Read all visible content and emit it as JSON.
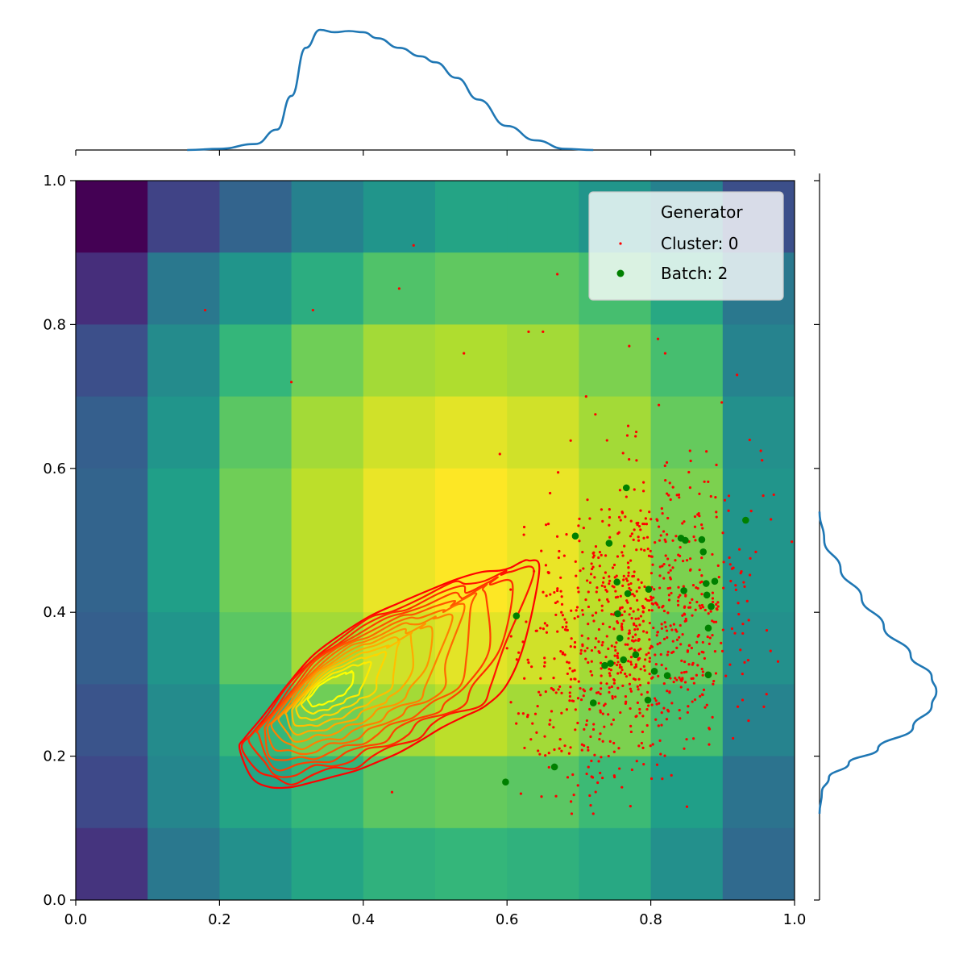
{
  "chart_data": {
    "type": "scatter",
    "title": "",
    "xlabel": "",
    "ylabel": "",
    "xlim": [
      0.0,
      1.0
    ],
    "ylim": [
      0.0,
      1.0
    ],
    "x_ticks": [
      "0.0",
      "0.2",
      "0.4",
      "0.6",
      "0.8",
      "1.0"
    ],
    "y_ticks": [
      "0.0",
      "0.2",
      "0.4",
      "0.6",
      "0.8",
      "1.0"
    ],
    "grid": false,
    "legend": {
      "placement": "top-right",
      "title": "Generator",
      "entries": [
        {
          "label": "Cluster: 0",
          "color": "#ff0000",
          "marker": "small-dot"
        },
        {
          "label": "Batch: 2",
          "color": "#008000",
          "marker": "dot"
        }
      ]
    },
    "background_heatmap": {
      "colormap": "viridis",
      "x_bins": [
        0.0,
        0.1,
        0.2,
        0.3,
        0.4,
        0.5,
        0.6,
        0.7,
        0.8,
        0.9,
        1.0
      ],
      "y_bins": [
        0.0,
        0.1,
        0.2,
        0.3,
        0.4,
        0.5,
        0.6,
        0.7,
        0.8,
        0.9,
        1.0
      ],
      "intensity_rows_top_to_bottom": [
        [
          0.0,
          0.2,
          0.32,
          0.44,
          0.52,
          0.58,
          0.58,
          0.52,
          0.44,
          0.24
        ],
        [
          0.13,
          0.4,
          0.52,
          0.62,
          0.72,
          0.75,
          0.75,
          0.7,
          0.6,
          0.4
        ],
        [
          0.24,
          0.48,
          0.66,
          0.78,
          0.86,
          0.88,
          0.86,
          0.8,
          0.7,
          0.45
        ],
        [
          0.3,
          0.52,
          0.74,
          0.86,
          0.93,
          0.96,
          0.93,
          0.86,
          0.76,
          0.5
        ],
        [
          0.32,
          0.56,
          0.78,
          0.9,
          0.97,
          1.0,
          0.97,
          0.9,
          0.8,
          0.52
        ],
        [
          0.32,
          0.56,
          0.78,
          0.9,
          0.97,
          1.0,
          0.97,
          0.9,
          0.8,
          0.52
        ],
        [
          0.3,
          0.52,
          0.74,
          0.86,
          0.93,
          0.96,
          0.93,
          0.86,
          0.76,
          0.5
        ],
        [
          0.26,
          0.48,
          0.66,
          0.78,
          0.86,
          0.9,
          0.86,
          0.8,
          0.7,
          0.45
        ],
        [
          0.22,
          0.46,
          0.58,
          0.66,
          0.74,
          0.76,
          0.74,
          0.68,
          0.56,
          0.38
        ],
        [
          0.15,
          0.4,
          0.5,
          0.58,
          0.64,
          0.66,
          0.64,
          0.6,
          0.5,
          0.34
        ]
      ]
    },
    "series": [
      {
        "name": "Cluster: 0",
        "color": "#ff0000",
        "distribution": {
          "count": 900,
          "x_mean": 0.78,
          "x_sd": 0.085,
          "x_min": 0.6,
          "x_max": 1.0,
          "y_mean": 0.38,
          "y_sd": 0.11,
          "y_min": 0.1,
          "y_max": 0.72,
          "correlation": 0.3
        },
        "x": [
          0.18,
          0.33,
          0.45,
          0.47,
          0.67,
          0.3,
          0.54,
          0.63,
          0.65,
          0.59,
          0.6,
          0.44,
          0.63,
          0.66,
          0.69,
          0.72,
          0.67,
          0.71,
          0.81,
          0.82,
          0.77,
          0.92
        ],
        "y": [
          0.82,
          0.82,
          0.85,
          0.91,
          0.87,
          0.72,
          0.76,
          0.79,
          0.79,
          0.62,
          0.35,
          0.15,
          0.33,
          0.25,
          0.12,
          0.12,
          0.43,
          0.7,
          0.78,
          0.76,
          0.77,
          0.73
        ]
      },
      {
        "name": "Batch: 2",
        "color": "#008000",
        "x": [
          0.766,
          0.695,
          0.742,
          0.753,
          0.768,
          0.797,
          0.754,
          0.757,
          0.762,
          0.744,
          0.736,
          0.779,
          0.805,
          0.823,
          0.796,
          0.72,
          0.666,
          0.598,
          0.613,
          0.842,
          0.848,
          0.871,
          0.873,
          0.877,
          0.889,
          0.878,
          0.884,
          0.846,
          0.88,
          0.932,
          0.88
        ],
        "y": [
          0.573,
          0.506,
          0.496,
          0.442,
          0.426,
          0.432,
          0.398,
          0.364,
          0.334,
          0.329,
          0.326,
          0.341,
          0.318,
          0.312,
          0.278,
          0.274,
          0.185,
          0.164,
          0.395,
          0.503,
          0.5,
          0.501,
          0.484,
          0.44,
          0.443,
          0.424,
          0.408,
          0.43,
          0.378,
          0.528,
          0.313
        ]
      }
    ],
    "kde_contours": {
      "colormap": "autumn",
      "levels": 13,
      "peak": [
        0.34,
        0.29
      ],
      "outer_boundary_x": [
        0.228,
        0.245,
        0.27,
        0.3,
        0.33,
        0.36,
        0.39,
        0.42,
        0.45,
        0.48,
        0.51,
        0.54,
        0.57,
        0.6,
        0.625,
        0.645,
        0.63,
        0.62,
        0.605,
        0.59,
        0.565,
        0.53,
        0.49,
        0.45,
        0.41,
        0.37,
        0.33,
        0.295,
        0.26,
        0.235
      ],
      "outer_boundary_y": [
        0.21,
        0.17,
        0.157,
        0.157,
        0.164,
        0.172,
        0.18,
        0.192,
        0.205,
        0.222,
        0.24,
        0.255,
        0.27,
        0.3,
        0.36,
        0.46,
        0.472,
        0.47,
        0.462,
        0.458,
        0.456,
        0.446,
        0.43,
        0.413,
        0.395,
        0.37,
        0.34,
        0.3,
        0.255,
        0.225
      ]
    },
    "marginal_x": {
      "type": "kde",
      "color": "#1f77b4",
      "x": [
        0.155,
        0.2,
        0.25,
        0.28,
        0.3,
        0.32,
        0.34,
        0.36,
        0.38,
        0.4,
        0.42,
        0.45,
        0.48,
        0.5,
        0.53,
        0.56,
        0.6,
        0.64,
        0.68,
        0.72
      ],
      "density": [
        0.0,
        0.01,
        0.05,
        0.17,
        0.45,
        0.85,
        1.0,
        0.98,
        0.99,
        0.98,
        0.93,
        0.85,
        0.78,
        0.73,
        0.6,
        0.42,
        0.2,
        0.08,
        0.01,
        0.0
      ]
    },
    "marginal_y": {
      "type": "kde",
      "color": "#1f77b4",
      "y": [
        0.54,
        0.5,
        0.46,
        0.42,
        0.38,
        0.34,
        0.31,
        0.29,
        0.27,
        0.24,
        0.21,
        0.19,
        0.17,
        0.15,
        0.12
      ],
      "density": [
        0.0,
        0.04,
        0.18,
        0.36,
        0.55,
        0.78,
        0.96,
        1.0,
        0.96,
        0.8,
        0.5,
        0.25,
        0.08,
        0.02,
        0.0
      ]
    }
  }
}
